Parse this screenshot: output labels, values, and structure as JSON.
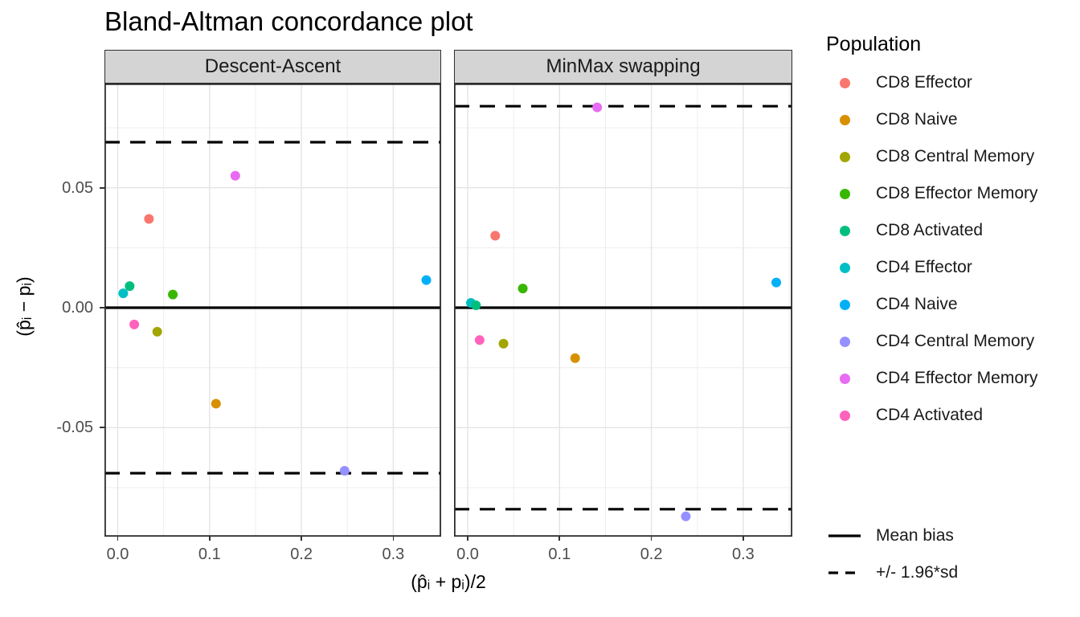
{
  "title": "Bland-Altman concordance plot",
  "axes": {
    "x_label": "(p̂ᵢ + pᵢ)/2",
    "y_label": "(p̂ᵢ − pᵢ)",
    "x_tick_labels": [
      "0.0",
      "0.1",
      "0.2",
      "0.3"
    ],
    "y_tick_labels": [
      "0.05",
      "0.00",
      "-0.05"
    ]
  },
  "legend": {
    "title": "Population",
    "items": [
      {
        "label": "CD8 Effector",
        "color": "#F8766D"
      },
      {
        "label": "CD8 Naive",
        "color": "#D89000"
      },
      {
        "label": "CD8 Central Memory",
        "color": "#A3A500"
      },
      {
        "label": "CD8 Effector Memory",
        "color": "#39B600"
      },
      {
        "label": "CD8 Activated",
        "color": "#00BF7D"
      },
      {
        "label": "CD4 Effector",
        "color": "#00BFC4"
      },
      {
        "label": "CD4 Naive",
        "color": "#00B0F6"
      },
      {
        "label": "CD4 Central Memory",
        "color": "#9590FF"
      },
      {
        "label": "CD4 Effector Memory",
        "color": "#E76BF3"
      },
      {
        "label": "CD4 Activated",
        "color": "#FF62BC"
      }
    ],
    "line_items": [
      {
        "label": "Mean bias",
        "style": "solid"
      },
      {
        "label": "+/- 1.96*sd",
        "style": "dashed"
      }
    ]
  },
  "colors": {
    "strip_background": "#D4D4D4",
    "panel_border": "#2e2e2e",
    "grid_major": "#E4E4E4",
    "grid_minor": "#ECECEC",
    "reference_lines": "#000000",
    "tick_text": "#4D4D4D"
  },
  "chart_data": {
    "type": "scatter",
    "title": "Bland-Altman concordance plot",
    "xlabel": "(p̂ᵢ + pᵢ)/2",
    "ylabel": "(p̂ᵢ − pᵢ)",
    "xlim": [
      -0.014,
      0.353
    ],
    "ylim": [
      -0.095,
      0.093
    ],
    "x_ticks": [
      0,
      0.1,
      0.2,
      0.3
    ],
    "y_ticks": [
      0.05,
      0,
      -0.05
    ],
    "x_minor": [
      0.05,
      0.15,
      0.25,
      0.35
    ],
    "y_minor": [
      0.075,
      0.025,
      -0.025,
      -0.075
    ],
    "grid": true,
    "legend_position": "right",
    "palette": {
      "CD8 Effector": "#F8766D",
      "CD8 Naive": "#D89000",
      "CD8 Central Memory": "#A3A500",
      "CD8 Effector Memory": "#39B600",
      "CD8 Activated": "#00BF7D",
      "CD4 Effector": "#00BFC4",
      "CD4 Naive": "#00B0F6",
      "CD4 Central Memory": "#9590FF",
      "CD4 Effector Memory": "#E76BF3",
      "CD4 Activated": "#FF62BC"
    },
    "facets": [
      {
        "label": "Descent-Ascent",
        "mean_bias": 0.0,
        "loa_upper": 0.069,
        "loa_lower": -0.069,
        "points": [
          {
            "population": "CD8 Effector",
            "x": 0.034,
            "y": 0.037
          },
          {
            "population": "CD8 Naive",
            "x": 0.107,
            "y": -0.04
          },
          {
            "population": "CD8 Central Memory",
            "x": 0.043,
            "y": -0.01
          },
          {
            "population": "CD8 Effector Memory",
            "x": 0.06,
            "y": 0.0055
          },
          {
            "population": "CD4 Effector",
            "x": 0.006,
            "y": 0.006
          },
          {
            "population": "CD8 Activated",
            "x": 0.013,
            "y": 0.009
          },
          {
            "population": "CD4 Naive",
            "x": 0.336,
            "y": 0.0115
          },
          {
            "population": "CD4 Central Memory",
            "x": 0.247,
            "y": -0.068
          },
          {
            "population": "CD4 Effector Memory",
            "x": 0.128,
            "y": 0.055
          },
          {
            "population": "CD4 Activated",
            "x": 0.018,
            "y": -0.007
          }
        ]
      },
      {
        "label": "MinMax swapping",
        "mean_bias": 0.0,
        "loa_upper": 0.084,
        "loa_lower": -0.084,
        "points": [
          {
            "population": "CD8 Effector",
            "x": 0.03,
            "y": 0.03
          },
          {
            "population": "CD8 Naive",
            "x": 0.117,
            "y": -0.021
          },
          {
            "population": "CD8 Central Memory",
            "x": 0.039,
            "y": -0.015
          },
          {
            "population": "CD8 Effector Memory",
            "x": 0.06,
            "y": 0.008
          },
          {
            "population": "CD4 Effector",
            "x": 0.0035,
            "y": 0.002
          },
          {
            "population": "CD8 Activated",
            "x": 0.009,
            "y": 0.001
          },
          {
            "population": "CD4 Naive",
            "x": 0.336,
            "y": 0.0105
          },
          {
            "population": "CD4 Central Memory",
            "x": 0.2375,
            "y": -0.087
          },
          {
            "population": "CD4 Effector Memory",
            "x": 0.141,
            "y": 0.0835
          },
          {
            "population": "CD4 Activated",
            "x": 0.013,
            "y": -0.0135
          }
        ]
      }
    ]
  }
}
